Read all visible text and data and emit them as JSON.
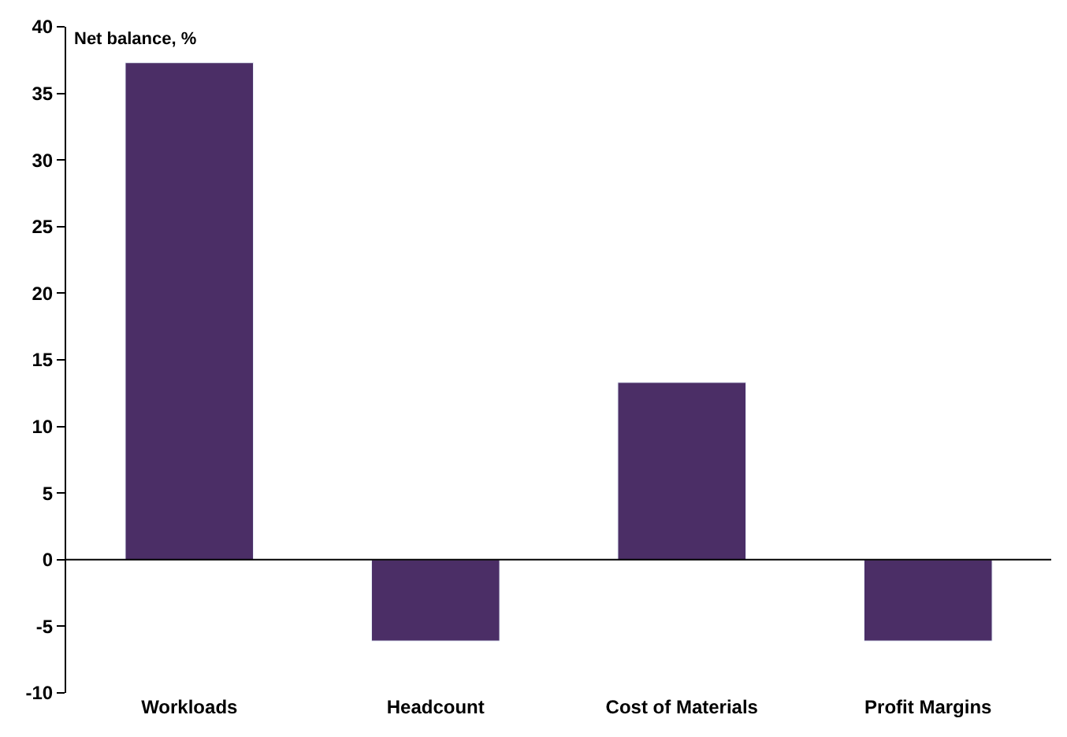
{
  "chart_data": {
    "type": "bar",
    "ylabel": "Net balance, %",
    "categories": [
      "Workloads",
      "Headcount",
      "Cost of Materials",
      "Profit Margins"
    ],
    "series": [
      {
        "color": "#4b2e66",
        "values": [
          37.3,
          -6.1,
          13.3,
          -6.1
        ]
      }
    ],
    "ylim": [
      -10,
      40
    ],
    "yticks": [
      -10,
      -5,
      0,
      5,
      10,
      15,
      20,
      25,
      30,
      35,
      40
    ],
    "grid": false,
    "legend": false,
    "ref_lines": [
      {
        "axis": "y",
        "value": 0,
        "color": "#000000"
      }
    ]
  }
}
